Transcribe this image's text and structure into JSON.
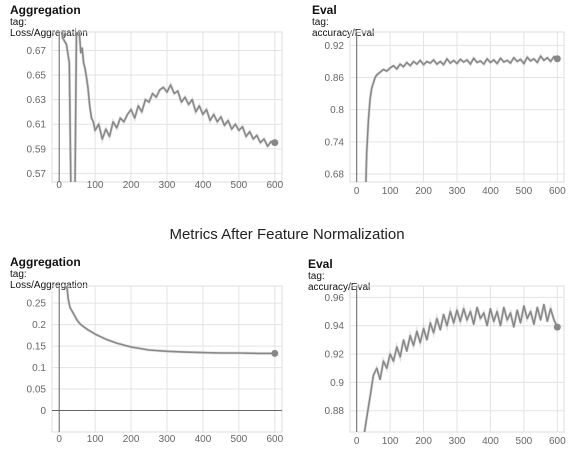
{
  "section_title": "Metrics After Feature Normalization",
  "panels": [
    {
      "title": "Aggregation",
      "tag": "tag: Loss/Aggregation"
    },
    {
      "title": "Eval",
      "tag": "tag: accuracy/Eval"
    },
    {
      "title": "Aggregation",
      "tag": "tag: Loss/Aggregation"
    },
    {
      "title": "Eval",
      "tag": "tag: accuracy/Eval"
    }
  ],
  "chart_data": [
    {
      "type": "line",
      "title": "Aggregation",
      "subtitle": "tag: Loss/Aggregation",
      "xlim": [
        -20,
        620
      ],
      "ylim": [
        0.563,
        0.685
      ],
      "xticks": [
        0,
        100,
        200,
        300,
        400,
        500,
        600
      ],
      "yticks": [
        0.57,
        0.59,
        0.61,
        0.63,
        0.65,
        0.67
      ],
      "ytick_labels": [
        "0.57",
        "0.59",
        "0.61",
        "0.63",
        "0.65",
        "0.67"
      ],
      "grid": true,
      "series": [
        {
          "x": [
            0,
            10,
            20,
            28,
            35,
            42,
            48,
            52,
            56,
            60,
            64,
            68,
            72,
            76,
            80,
            85,
            90,
            95,
            100,
            110,
            120,
            130,
            140,
            150,
            160,
            170,
            180,
            190,
            200,
            210,
            220,
            230,
            240,
            250,
            260,
            270,
            280,
            290,
            300,
            310,
            320,
            330,
            340,
            350,
            360,
            370,
            380,
            390,
            400,
            410,
            420,
            430,
            440,
            450,
            460,
            470,
            480,
            490,
            500,
            510,
            520,
            530,
            540,
            550,
            560,
            570,
            580,
            590,
            600
          ],
          "y": [
            0.72,
            0.68,
            0.675,
            0.66,
            0.5,
            0.5,
            0.68,
            0.7,
            0.685,
            0.668,
            0.672,
            0.66,
            0.655,
            0.648,
            0.64,
            0.625,
            0.615,
            0.612,
            0.605,
            0.61,
            0.598,
            0.606,
            0.6,
            0.612,
            0.607,
            0.615,
            0.612,
            0.618,
            0.622,
            0.615,
            0.625,
            0.62,
            0.63,
            0.628,
            0.635,
            0.632,
            0.638,
            0.64,
            0.636,
            0.642,
            0.635,
            0.637,
            0.628,
            0.632,
            0.626,
            0.63,
            0.62,
            0.625,
            0.618,
            0.622,
            0.613,
            0.618,
            0.612,
            0.616,
            0.609,
            0.613,
            0.606,
            0.61,
            0.605,
            0.608,
            0.6,
            0.604,
            0.598,
            0.601,
            0.595,
            0.598,
            0.592,
            0.596,
            0.595
          ]
        }
      ]
    },
    {
      "type": "line",
      "title": "Eval",
      "subtitle": "tag: accuracy/Eval",
      "xlim": [
        -20,
        620
      ],
      "ylim": [
        0.665,
        0.945
      ],
      "xticks": [
        0,
        100,
        200,
        300,
        400,
        500,
        600
      ],
      "yticks": [
        0.68,
        0.74,
        0.8,
        0.86,
        0.92
      ],
      "ytick_labels": [
        "0.68",
        "0.74",
        "0.8",
        "0.86",
        "0.92"
      ],
      "grid": true,
      "series": [
        {
          "x": [
            25,
            30,
            35,
            40,
            45,
            50,
            55,
            60,
            70,
            80,
            90,
            100,
            110,
            120,
            130,
            140,
            150,
            160,
            170,
            180,
            190,
            200,
            210,
            220,
            230,
            240,
            250,
            260,
            270,
            280,
            290,
            300,
            310,
            320,
            330,
            340,
            350,
            360,
            370,
            380,
            390,
            400,
            410,
            420,
            430,
            440,
            450,
            460,
            470,
            480,
            490,
            500,
            510,
            520,
            530,
            540,
            550,
            560,
            570,
            580,
            590,
            600
          ],
          "y": [
            0.6,
            0.72,
            0.78,
            0.82,
            0.84,
            0.85,
            0.86,
            0.865,
            0.87,
            0.875,
            0.872,
            0.878,
            0.882,
            0.876,
            0.885,
            0.88,
            0.888,
            0.882,
            0.89,
            0.885,
            0.892,
            0.884,
            0.89,
            0.887,
            0.893,
            0.885,
            0.89,
            0.884,
            0.895,
            0.887,
            0.892,
            0.886,
            0.894,
            0.889,
            0.893,
            0.885,
            0.896,
            0.888,
            0.891,
            0.885,
            0.895,
            0.888,
            0.893,
            0.886,
            0.896,
            0.889,
            0.892,
            0.887,
            0.897,
            0.89,
            0.894,
            0.886,
            0.898,
            0.891,
            0.895,
            0.888,
            0.9,
            0.892,
            0.897,
            0.89,
            0.899,
            0.895
          ]
        }
      ]
    },
    {
      "type": "line",
      "title": "Aggregation",
      "subtitle": "tag: Loss/Aggregation",
      "xlim": [
        -20,
        620
      ],
      "ylim": [
        -0.05,
        0.29
      ],
      "xticks": [
        0,
        100,
        200,
        300,
        400,
        500,
        600
      ],
      "yticks": [
        0,
        0.05,
        0.1,
        0.15,
        0.2,
        0.25
      ],
      "ytick_labels": [
        "0",
        "0.05",
        "0.1",
        "0.15",
        "0.2",
        "0.25"
      ],
      "grid": true,
      "series": [
        {
          "x": [
            15,
            20,
            25,
            30,
            40,
            50,
            60,
            80,
            100,
            130,
            160,
            200,
            250,
            300,
            350,
            400,
            450,
            500,
            550,
            600
          ],
          "y": [
            0.4,
            0.3,
            0.26,
            0.24,
            0.225,
            0.21,
            0.2,
            0.188,
            0.178,
            0.166,
            0.157,
            0.148,
            0.141,
            0.138,
            0.136,
            0.135,
            0.134,
            0.134,
            0.133,
            0.133
          ]
        }
      ]
    },
    {
      "type": "line",
      "title": "Eval",
      "subtitle": "tag: accuracy/Eval",
      "xlim": [
        -20,
        620
      ],
      "ylim": [
        0.865,
        0.968
      ],
      "xticks": [
        0,
        100,
        200,
        300,
        400,
        500,
        600
      ],
      "yticks": [
        0.88,
        0.9,
        0.92,
        0.94,
        0.96
      ],
      "ytick_labels": [
        "0.88",
        "0.9",
        "0.92",
        "0.94",
        "0.96"
      ],
      "grid": true,
      "series": [
        {
          "x": [
            20,
            30,
            40,
            50,
            60,
            70,
            80,
            90,
            100,
            110,
            120,
            130,
            140,
            150,
            160,
            170,
            180,
            190,
            200,
            210,
            220,
            230,
            240,
            250,
            260,
            270,
            280,
            290,
            300,
            310,
            320,
            330,
            340,
            350,
            360,
            370,
            380,
            390,
            400,
            410,
            420,
            430,
            440,
            450,
            460,
            470,
            480,
            490,
            500,
            510,
            520,
            530,
            540,
            550,
            560,
            570,
            580,
            590,
            600
          ],
          "y": [
            0.86,
            0.875,
            0.89,
            0.905,
            0.91,
            0.902,
            0.915,
            0.91,
            0.92,
            0.915,
            0.925,
            0.918,
            0.93,
            0.922,
            0.933,
            0.926,
            0.936,
            0.928,
            0.938,
            0.93,
            0.942,
            0.935,
            0.945,
            0.937,
            0.948,
            0.94,
            0.95,
            0.942,
            0.951,
            0.943,
            0.952,
            0.944,
            0.95,
            0.941,
            0.953,
            0.945,
            0.949,
            0.94,
            0.952,
            0.943,
            0.95,
            0.94,
            0.953,
            0.944,
            0.949,
            0.939,
            0.951,
            0.942,
            0.954,
            0.945,
            0.95,
            0.941,
            0.953,
            0.944,
            0.955,
            0.943,
            0.952,
            0.944,
            0.939
          ]
        }
      ]
    }
  ]
}
